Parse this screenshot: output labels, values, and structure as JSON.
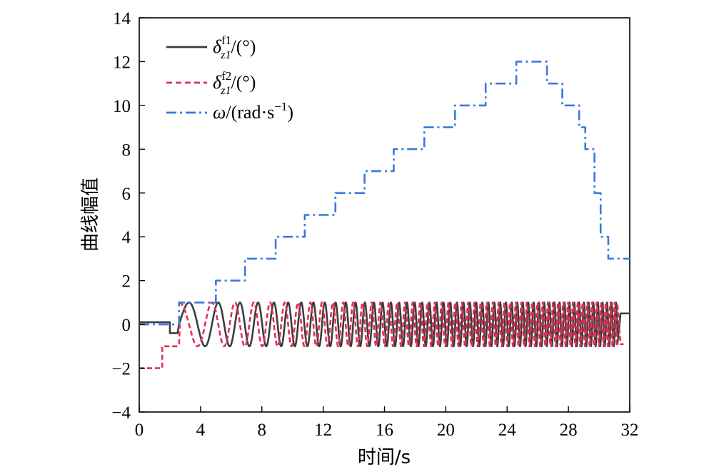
{
  "chart_data": {
    "type": "line",
    "xlabel": "时间/s",
    "ylabel": "曲线幅值",
    "xlim": [
      0,
      32
    ],
    "ylim": [
      -4,
      14
    ],
    "xticks": [
      0,
      4,
      8,
      12,
      16,
      20,
      24,
      28,
      32
    ],
    "yticks": [
      -4,
      -2,
      0,
      2,
      4,
      6,
      8,
      10,
      12,
      14
    ],
    "grid": false,
    "legend_position": "top-left",
    "legend": [
      {
        "symbol": "δ",
        "superscript": "f1",
        "subscript": "z1",
        "unit": "/(°)"
      },
      {
        "symbol": "δ",
        "superscript": "f2",
        "subscript": "z1",
        "unit": "/(°)"
      },
      {
        "symbol": "ω",
        "unit": "/(rad·s",
        "unit_exp": "−1",
        "unit_close": ")"
      }
    ],
    "series": [
      {
        "color": "#3a3d42",
        "style": "solid",
        "description_points": "oscillation between -1 and 1 from about 2.6 s to 31.2 s with frequency increasing over time",
        "x": [
          0,
          2.0,
          2.05,
          2.5,
          2.6,
          31.2,
          31.3,
          31.8,
          32
        ],
        "y": [
          0.1,
          0.1,
          -0.4,
          -0.4,
          0,
          0,
          0.5,
          0.5,
          0.5
        ]
      },
      {
        "color": "#e03050",
        "style": "dashed",
        "x": [
          0,
          1.5,
          1.55,
          2.5,
          2.6,
          31.2,
          31.6
        ],
        "y": [
          -2,
          -2,
          -1,
          -1,
          0,
          0,
          -0.9
        ]
      },
      {
        "color": "#3a78e0",
        "style": "dashdot",
        "x": [
          0,
          2.6,
          2.6,
          5.0,
          5.0,
          6.9,
          6.9,
          8.9,
          8.9,
          10.8,
          10.8,
          12.8,
          12.8,
          14.7,
          14.7,
          16.6,
          16.6,
          18.6,
          18.6,
          20.6,
          20.6,
          22.6,
          22.6,
          24.6,
          24.6,
          26.6,
          26.6,
          27.6,
          27.6,
          28.7,
          28.7,
          29.1,
          29.1,
          29.7,
          29.7,
          30.1,
          30.1,
          30.6,
          30.6,
          32
        ],
        "y": [
          0,
          0,
          1,
          1,
          2,
          2,
          3,
          3,
          4,
          4,
          5,
          5,
          6,
          6,
          7,
          7,
          8,
          8,
          9,
          9,
          10,
          10,
          11,
          11,
          12,
          12,
          11,
          11,
          10,
          10,
          9,
          9,
          8,
          8,
          6,
          6,
          4,
          4,
          3,
          3
        ]
      }
    ]
  }
}
